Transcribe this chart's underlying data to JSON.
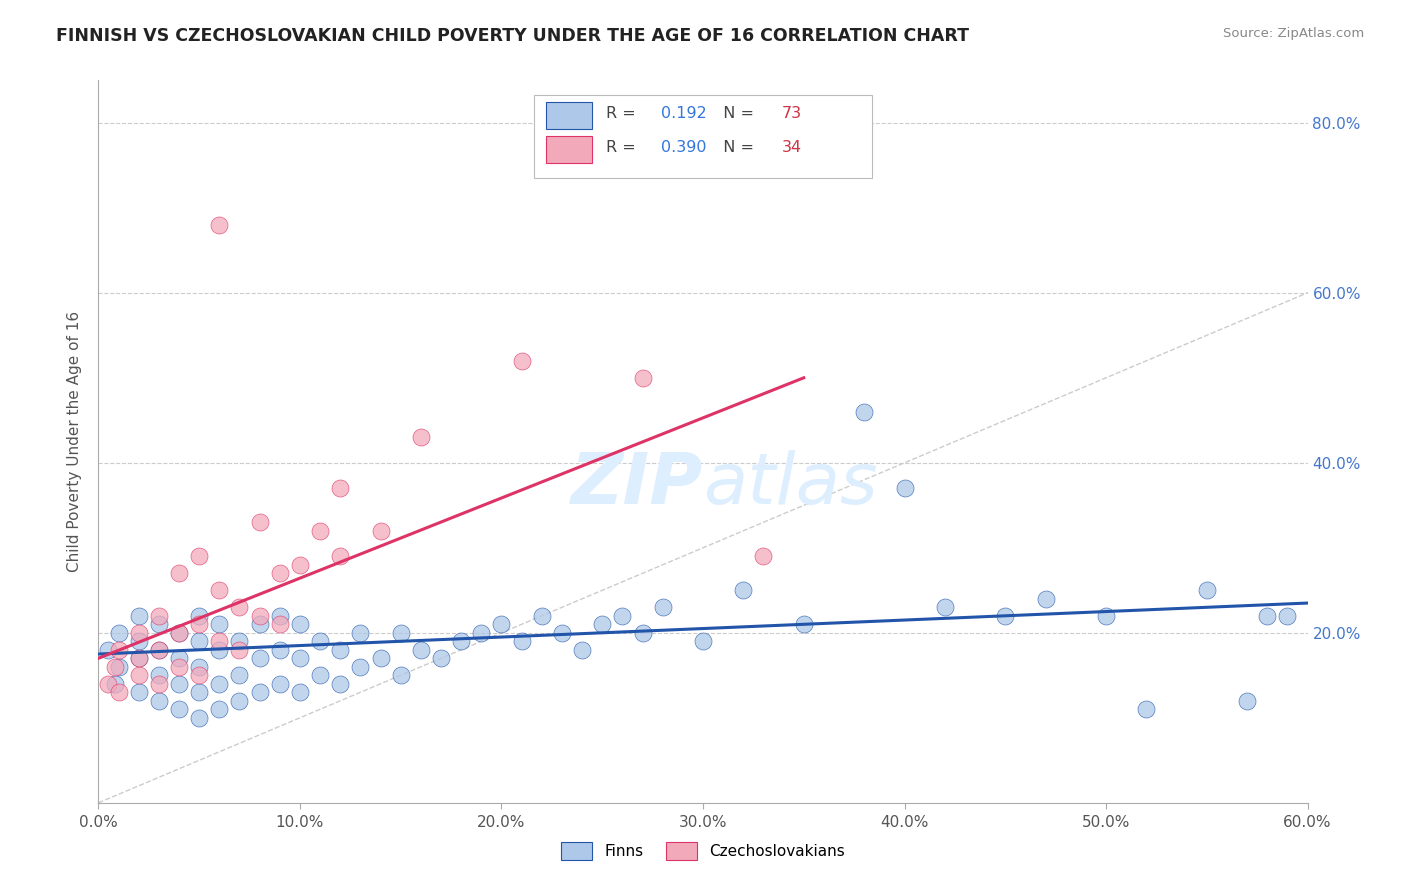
{
  "title": "FINNISH VS CZECHOSLOVAKIAN CHILD POVERTY UNDER THE AGE OF 16 CORRELATION CHART",
  "source": "Source: ZipAtlas.com",
  "ylabel": "Child Poverty Under the Age of 16",
  "legend_labels": [
    "Finns",
    "Czechoslovakians"
  ],
  "finn_r": "0.192",
  "finn_n": "73",
  "czech_r": "0.390",
  "czech_n": "34",
  "finn_color": "#adc8e8",
  "czech_color": "#f2aabb",
  "finn_line_color": "#2255aa",
  "czech_line_color": "#dd3366",
  "ref_line_color": "#cccccc",
  "xmin": 0.0,
  "xmax": 0.6,
  "ymin": 0.0,
  "ymax": 0.85,
  "background_color": "#ffffff",
  "finn_scatter_x": [
    0.005,
    0.008,
    0.01,
    0.01,
    0.02,
    0.02,
    0.02,
    0.02,
    0.03,
    0.03,
    0.03,
    0.03,
    0.04,
    0.04,
    0.04,
    0.04,
    0.05,
    0.05,
    0.05,
    0.05,
    0.05,
    0.06,
    0.06,
    0.06,
    0.06,
    0.07,
    0.07,
    0.07,
    0.08,
    0.08,
    0.08,
    0.09,
    0.09,
    0.09,
    0.1,
    0.1,
    0.1,
    0.11,
    0.11,
    0.12,
    0.12,
    0.13,
    0.13,
    0.14,
    0.15,
    0.15,
    0.16,
    0.17,
    0.18,
    0.19,
    0.2,
    0.21,
    0.22,
    0.23,
    0.24,
    0.25,
    0.26,
    0.27,
    0.28,
    0.3,
    0.32,
    0.35,
    0.38,
    0.4,
    0.42,
    0.45,
    0.47,
    0.5,
    0.52,
    0.55,
    0.57,
    0.58,
    0.59
  ],
  "finn_scatter_y": [
    0.18,
    0.14,
    0.16,
    0.2,
    0.13,
    0.17,
    0.19,
    0.22,
    0.12,
    0.15,
    0.18,
    0.21,
    0.11,
    0.14,
    0.17,
    0.2,
    0.1,
    0.13,
    0.16,
    0.19,
    0.22,
    0.11,
    0.14,
    0.18,
    0.21,
    0.12,
    0.15,
    0.19,
    0.13,
    0.17,
    0.21,
    0.14,
    0.18,
    0.22,
    0.13,
    0.17,
    0.21,
    0.15,
    0.19,
    0.14,
    0.18,
    0.16,
    0.2,
    0.17,
    0.15,
    0.2,
    0.18,
    0.17,
    0.19,
    0.2,
    0.21,
    0.19,
    0.22,
    0.2,
    0.18,
    0.21,
    0.22,
    0.2,
    0.23,
    0.19,
    0.25,
    0.21,
    0.46,
    0.37,
    0.23,
    0.22,
    0.24,
    0.22,
    0.11,
    0.25,
    0.12,
    0.22,
    0.22
  ],
  "czech_scatter_x": [
    0.005,
    0.008,
    0.01,
    0.01,
    0.02,
    0.02,
    0.02,
    0.03,
    0.03,
    0.03,
    0.04,
    0.04,
    0.04,
    0.05,
    0.05,
    0.05,
    0.06,
    0.06,
    0.07,
    0.07,
    0.08,
    0.08,
    0.09,
    0.09,
    0.1,
    0.11,
    0.12,
    0.12,
    0.14,
    0.16,
    0.21,
    0.27,
    0.33,
    0.06
  ],
  "czech_scatter_y": [
    0.14,
    0.16,
    0.13,
    0.18,
    0.15,
    0.17,
    0.2,
    0.14,
    0.18,
    0.22,
    0.16,
    0.2,
    0.27,
    0.15,
    0.21,
    0.29,
    0.19,
    0.25,
    0.18,
    0.23,
    0.22,
    0.33,
    0.21,
    0.27,
    0.28,
    0.32,
    0.29,
    0.37,
    0.32,
    0.43,
    0.52,
    0.5,
    0.29,
    0.68
  ],
  "finn_trend_x": [
    0.0,
    0.6
  ],
  "finn_trend_y": [
    0.175,
    0.235
  ],
  "czech_trend_x": [
    0.0,
    0.35
  ],
  "czech_trend_y": [
    0.17,
    0.5
  ],
  "ref_line_x": [
    0.0,
    0.85
  ],
  "ref_line_y": [
    0.0,
    0.85
  ],
  "yticks": [
    0.2,
    0.4,
    0.6,
    0.8
  ],
  "xticks": [
    0.0,
    0.1,
    0.2,
    0.3,
    0.4,
    0.5,
    0.6
  ]
}
